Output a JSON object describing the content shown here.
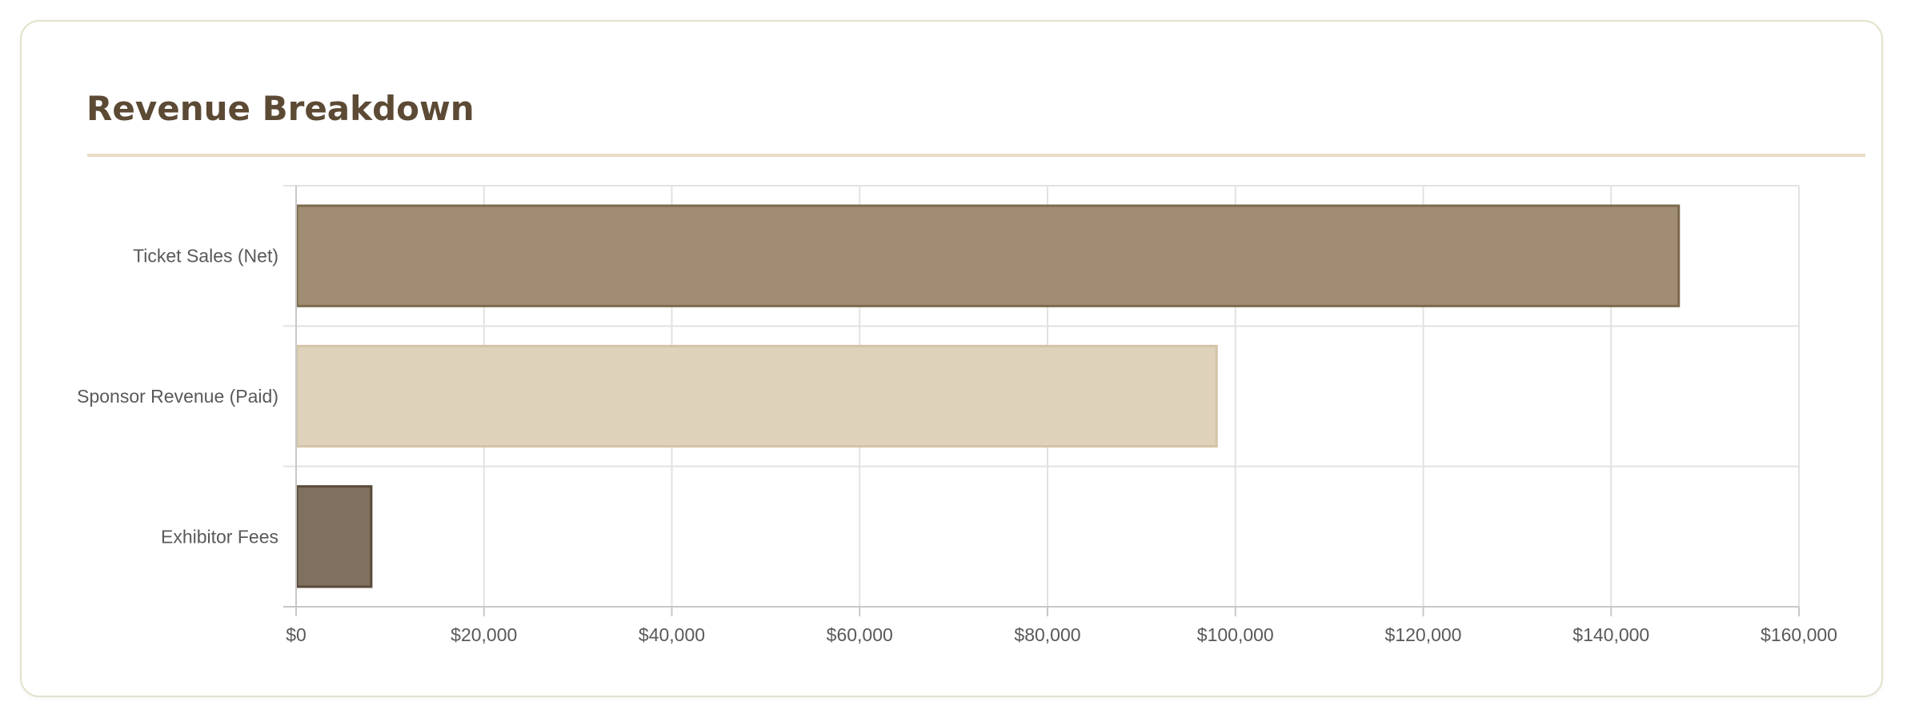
{
  "card": {
    "title": "Revenue Breakdown"
  },
  "chart_data": {
    "type": "bar",
    "orientation": "horizontal",
    "title": "",
    "xlabel": "",
    "ylabel": "",
    "categories": [
      "Ticket Sales (Net)",
      "Sponsor Revenue (Paid)",
      "Exhibitor Fees"
    ],
    "values": [
      147200,
      98000,
      8000
    ],
    "bar_colors": [
      "#a08d73",
      "#ded2ba",
      "#80705f"
    ],
    "bar_border_colors": [
      "#7d6a4c",
      "#d3c4a6",
      "#5a4a3b"
    ],
    "xlim": [
      0,
      160000
    ],
    "x_ticks": [
      0,
      20000,
      40000,
      60000,
      80000,
      100000,
      120000,
      140000,
      160000
    ],
    "x_tick_labels": [
      "$0",
      "$20,000",
      "$40,000",
      "$60,000",
      "$80,000",
      "$100,000",
      "$120,000",
      "$140,000",
      "$160,000"
    ],
    "grid": true,
    "legend": "none"
  },
  "colors": {
    "title": "#5c4a35",
    "rule": "#e8dcc7",
    "card_border": "#e4e2cc",
    "grid": "#e2e2e2",
    "axis": "#c8c8c8",
    "tick_text": "#595959"
  }
}
